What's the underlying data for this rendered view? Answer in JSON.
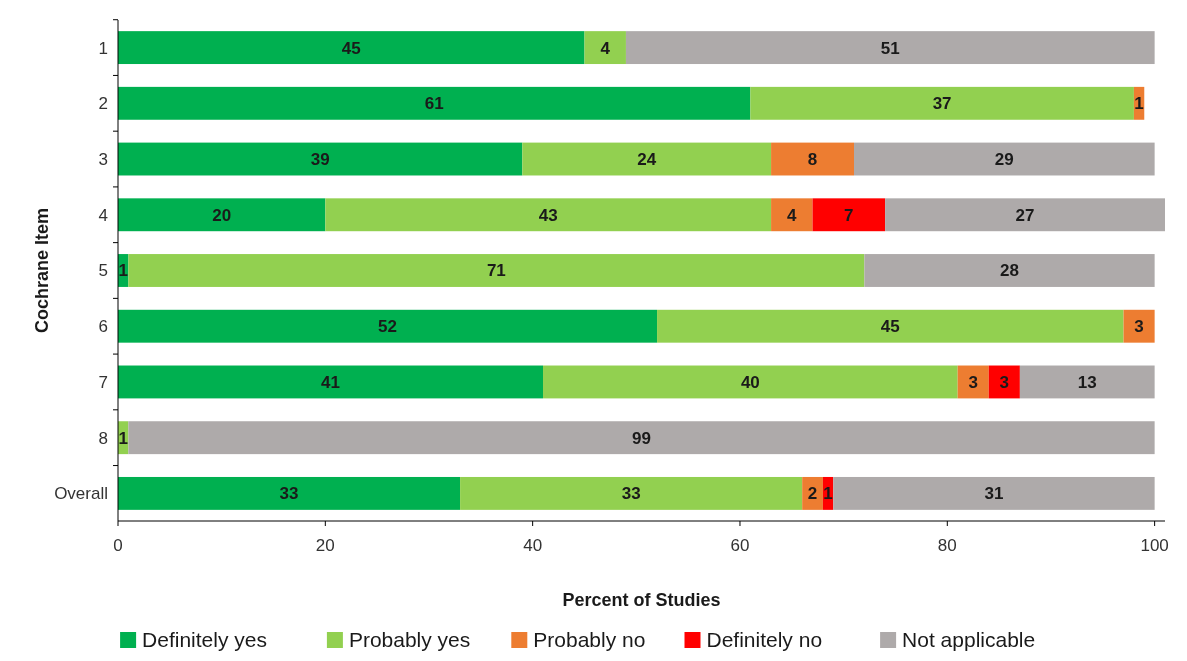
{
  "chart_data": {
    "type": "bar",
    "orientation": "horizontal",
    "stacked": true,
    "xlabel": "Percent of Studies",
    "ylabel": "Cochrane Item",
    "categories": [
      "1",
      "2",
      "3",
      "4",
      "5",
      "6",
      "7",
      "8",
      "Overall"
    ],
    "series": [
      {
        "name": "Definitely yes",
        "color": "#00b050",
        "values": [
          45,
          61,
          39,
          20,
          1,
          52,
          41,
          null,
          33
        ]
      },
      {
        "name": "Probably yes",
        "color": "#92d050",
        "values": [
          4,
          37,
          24,
          43,
          71,
          45,
          40,
          1,
          33
        ]
      },
      {
        "name": "Probably no",
        "color": "#ed7d31",
        "values": [
          null,
          1,
          8,
          4,
          null,
          3,
          3,
          null,
          2
        ]
      },
      {
        "name": "Definitely no",
        "color": "#ff0000",
        "values": [
          null,
          null,
          null,
          7,
          null,
          null,
          3,
          null,
          1
        ]
      },
      {
        "name": "Not applicable",
        "color": "#aeaaaa",
        "values": [
          51,
          null,
          29,
          27,
          28,
          null,
          13,
          99,
          31
        ]
      }
    ],
    "xlim": [
      0,
      101
    ],
    "xticks": [
      0,
      20,
      40,
      60,
      80,
      100
    ],
    "data_labels": true,
    "legend": "bottom",
    "grid": false
  }
}
